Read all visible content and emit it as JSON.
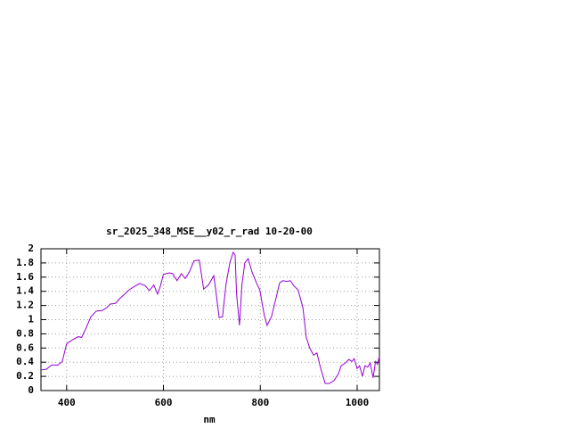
{
  "chart_data": {
    "type": "line",
    "title": "sr_2025_348_MSE__y02_r_rad 10-20-00",
    "x_label": "nm",
    "x": [
      347,
      358,
      369,
      382,
      391,
      400,
      413,
      424,
      431,
      440,
      450,
      461,
      474,
      483,
      490,
      501,
      510,
      520,
      529,
      538,
      551,
      562,
      571,
      580,
      588,
      593,
      600,
      612,
      619,
      628,
      637,
      645,
      654,
      663,
      674,
      683,
      693,
      704,
      709,
      715,
      722,
      729,
      737,
      744,
      748,
      751,
      757,
      762,
      768,
      775,
      783,
      792,
      799,
      808,
      814,
      823,
      832,
      840,
      847,
      854,
      862,
      869,
      878,
      888,
      895,
      902,
      910,
      917,
      924,
      934,
      943,
      952,
      961,
      967,
      976,
      983,
      989,
      994,
      1000,
      1005,
      1011,
      1016,
      1022,
      1027,
      1033,
      1038,
      1042,
      1046
    ],
    "series": [
      {
        "color": "#9400d3",
        "values": [
          0.29,
          0.3,
          0.36,
          0.36,
          0.41,
          0.66,
          0.72,
          0.76,
          0.75,
          0.88,
          1.04,
          1.12,
          1.13,
          1.17,
          1.22,
          1.23,
          1.3,
          1.36,
          1.42,
          1.46,
          1.51,
          1.48,
          1.41,
          1.49,
          1.36,
          1.46,
          1.64,
          1.66,
          1.65,
          1.55,
          1.65,
          1.58,
          1.68,
          1.83,
          1.84,
          1.43,
          1.49,
          1.62,
          1.36,
          1.03,
          1.04,
          1.49,
          1.8,
          1.95,
          1.91,
          1.36,
          0.92,
          1.49,
          1.8,
          1.86,
          1.67,
          1.52,
          1.42,
          1.07,
          0.92,
          1.04,
          1.29,
          1.52,
          1.55,
          1.54,
          1.55,
          1.48,
          1.42,
          1.17,
          0.75,
          0.6,
          0.5,
          0.53,
          0.33,
          0.1,
          0.1,
          0.14,
          0.23,
          0.35,
          0.39,
          0.44,
          0.41,
          0.45,
          0.31,
          0.35,
          0.2,
          0.35,
          0.33,
          0.39,
          0.18,
          0.41,
          0.37,
          0.48
        ]
      }
    ],
    "xlim": [
      347,
      1046
    ],
    "ylim": [
      0,
      2
    ],
    "xticks": [
      400,
      600,
      800,
      1000
    ],
    "yticks": [
      0,
      0.2,
      0.4,
      0.6,
      0.8,
      1,
      1.2,
      1.4,
      1.6,
      1.8,
      2
    ],
    "grid": true
  }
}
